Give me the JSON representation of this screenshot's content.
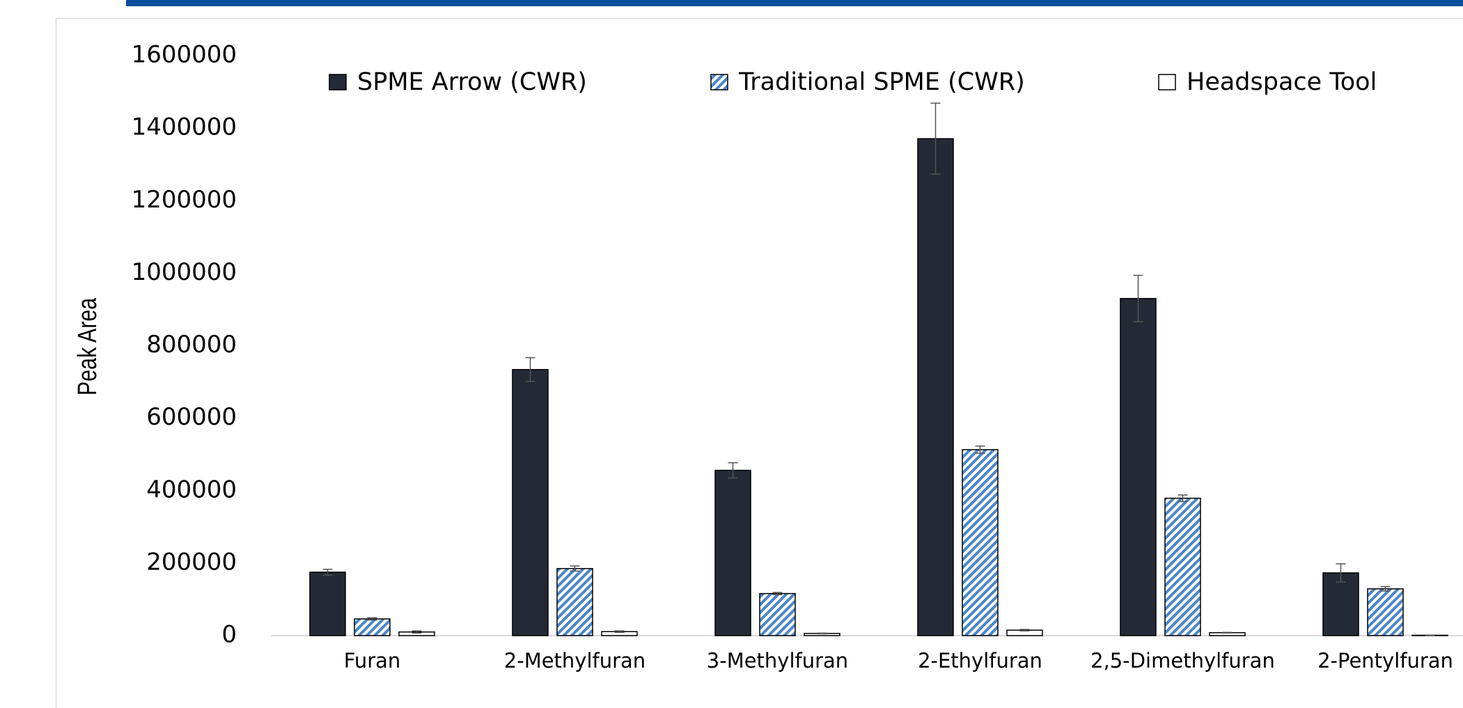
{
  "chart_data": {
    "type": "bar",
    "y_label": "Peak Area",
    "categories": [
      "Furan",
      "2-Methylfuran",
      "3-Methylfuran",
      "2-Ethylfuran",
      "2,5-Dimethylfuran",
      "2-Pentylfuran"
    ],
    "series": [
      {
        "name": "SPME Arrow (CWR)",
        "color": "#232a35",
        "fill": "solid",
        "values": [
          175000,
          734000,
          456000,
          1371000,
          930000,
          173000
        ],
        "errors": [
          8000,
          33000,
          21000,
          98000,
          64000,
          25000
        ]
      },
      {
        "name": "Traditional SPME (CWR)",
        "color": "#4a86c8",
        "fill": "hatch",
        "values": [
          46000,
          185000,
          116000,
          513000,
          379000,
          129000
        ],
        "errors": [
          3000,
          7000,
          3000,
          10000,
          9000,
          6000
        ]
      },
      {
        "name": "Headspace Tool",
        "color": "#ffffff",
        "fill": "solid",
        "values": [
          10000,
          11000,
          6000,
          15000,
          8000,
          1000
        ],
        "errors": [
          3000,
          2000,
          1000,
          2000,
          1000,
          500
        ]
      }
    ],
    "ylim": [
      0,
      1600000
    ],
    "yticks": [
      0,
      200000,
      400000,
      600000,
      800000,
      1000000,
      1200000,
      1400000,
      1600000
    ],
    "error_bars": true
  }
}
